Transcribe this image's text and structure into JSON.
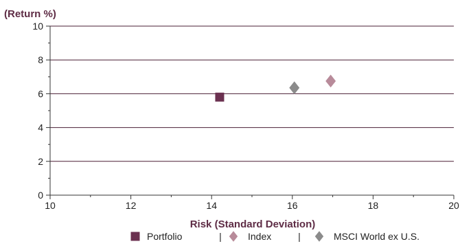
{
  "chart_data": {
    "type": "scatter",
    "title": "",
    "ylabel": "(Return %)",
    "xlabel": "Risk (Standard Deviation)",
    "xlim": [
      10,
      20
    ],
    "ylim": [
      0,
      10
    ],
    "xticks": [
      10,
      12,
      14,
      16,
      18,
      20
    ],
    "yticks": [
      0,
      2,
      4,
      6,
      8,
      10
    ],
    "grid": "horizontal",
    "legend_position": "bottom",
    "legend_separator": "|",
    "series": [
      {
        "name": "Portfolio",
        "x": 14.2,
        "y": 5.8,
        "marker": "square",
        "color": "#6b3150"
      },
      {
        "name": "Index",
        "x": 16.95,
        "y": 6.75,
        "marker": "diamond",
        "color": "#b88b9a"
      },
      {
        "name": "MSCI World ex U.S.",
        "x": 16.05,
        "y": 6.35,
        "marker": "diamond",
        "color": "#8b8b8b"
      }
    ]
  }
}
